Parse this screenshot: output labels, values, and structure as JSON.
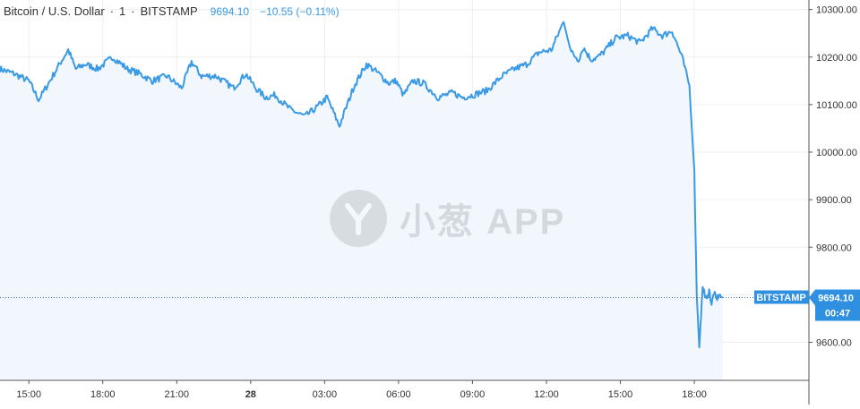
{
  "header": {
    "symbol": "Bitcoin / U.S. Dollar",
    "interval": "1",
    "exchange": "BITSTAMP",
    "last_value": "9694.10",
    "change": "−10.55 (−0.11%)"
  },
  "price_tag": {
    "exchange_label": "BITSTAMP",
    "value_label": "9694.10",
    "countdown": "00:47"
  },
  "watermark": {
    "text": "小葱 APP",
    "icon": "xiaocong-logo-icon"
  },
  "colors": {
    "line": "#3a9ae4",
    "fill": "#f1f7fd",
    "tag": "#2f8fe0",
    "grid": "#eceff2"
  },
  "chart_data": {
    "type": "area",
    "title": "Bitcoin / U.S. Dollar · 1 · BITSTAMP",
    "xlabel": "",
    "ylabel": "",
    "grid": true,
    "x_ticks": [
      "15:00",
      "18:00",
      "21:00",
      "28",
      "03:00",
      "06:00",
      "09:00",
      "12:00",
      "15:00",
      "18:00"
    ],
    "x_tick_hours": [
      0,
      3,
      6,
      9,
      12,
      15,
      18,
      21,
      24,
      27
    ],
    "y_ticks": [
      9600,
      9700,
      9800,
      9900,
      10000,
      10100,
      10200,
      10300
    ],
    "y_tick_labels": [
      "9600.00",
      "9700.00",
      "9800.00",
      "9900.00",
      "10000.00",
      "10100.00",
      "10200.00",
      "10300.00"
    ],
    "ylim": [
      9520,
      10320
    ],
    "xlim": [
      -1.17,
      31.65
    ],
    "last_price": 9694.1,
    "series": [
      {
        "x": [
          -1.17,
          -0.6,
          0.0,
          0.4,
          0.8,
          1.3,
          1.6,
          1.9,
          2.3,
          2.8,
          3.4,
          4.0,
          4.5,
          5.0,
          5.6,
          6.2,
          6.6,
          7.0,
          7.6,
          8.3,
          8.8,
          9.2,
          9.6,
          10.0,
          10.6,
          11.2,
          11.7,
          12.1,
          12.6,
          13.2,
          13.7,
          14.2,
          14.6,
          14.9,
          15.2,
          15.6,
          16.0,
          16.6,
          17.2,
          17.6,
          18.0,
          18.6,
          19.2,
          19.7,
          20.2,
          20.7,
          21.2,
          21.7,
          22.0,
          22.3,
          22.5,
          22.8,
          23.1,
          23.4,
          23.8,
          24.3,
          24.8,
          25.3,
          25.7,
          26.1,
          26.5,
          26.8,
          27.0,
          27.1,
          27.2,
          27.3,
          27.35,
          27.42,
          27.5,
          27.6,
          27.7,
          27.8,
          27.9,
          28.0,
          28.15
        ],
        "y": [
          10175,
          10165,
          10150,
          10110,
          10145,
          10190,
          10215,
          10175,
          10185,
          10175,
          10200,
          10175,
          10165,
          10150,
          10160,
          10135,
          10190,
          10160,
          10160,
          10135,
          10165,
          10135,
          10115,
          10120,
          10090,
          10075,
          10095,
          10115,
          10055,
          10140,
          10185,
          10165,
          10145,
          10150,
          10120,
          10150,
          10145,
          10115,
          10125,
          10115,
          10120,
          10130,
          10160,
          10175,
          10185,
          10210,
          10215,
          10275,
          10210,
          10195,
          10220,
          10195,
          10200,
          10215,
          10240,
          10245,
          10230,
          10260,
          10245,
          10255,
          10200,
          10140,
          9960,
          9700,
          9590,
          9680,
          9720,
          9700,
          9690,
          9710,
          9680,
          9705,
          9690,
          9700,
          9694
        ]
      }
    ]
  }
}
